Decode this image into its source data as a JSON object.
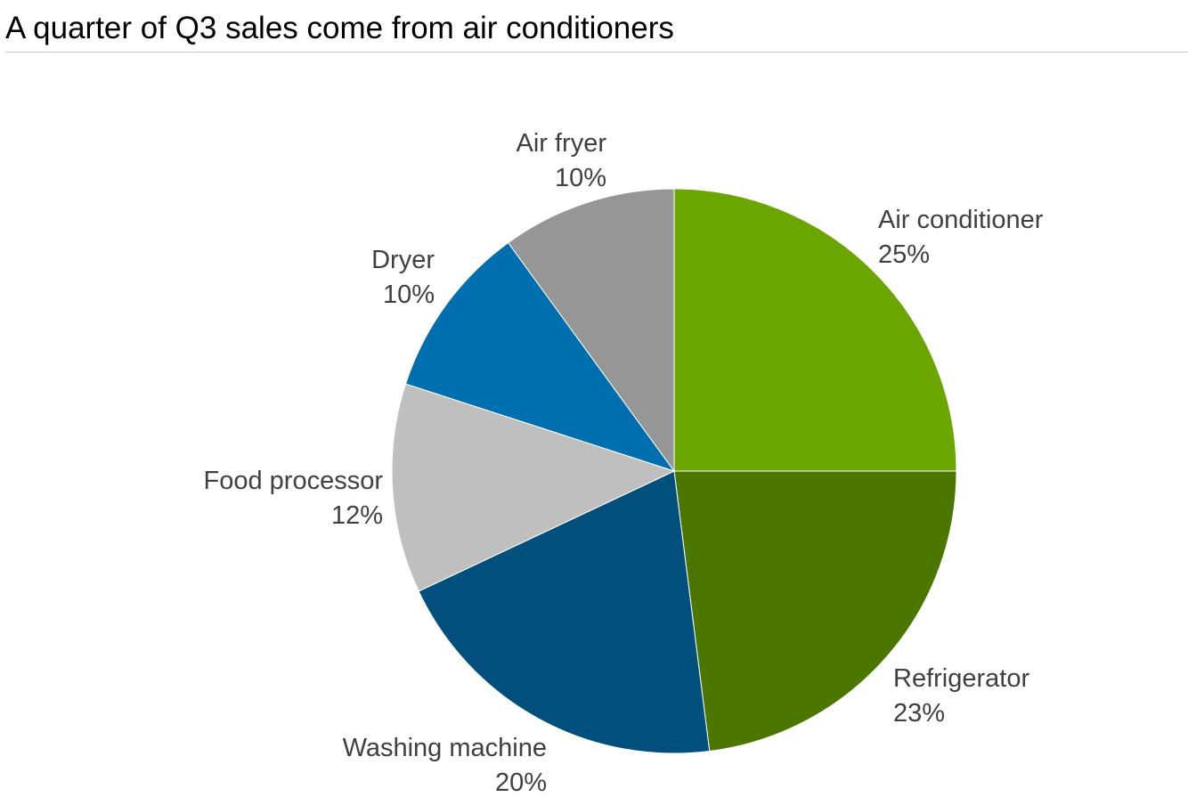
{
  "chart_data": {
    "type": "pie",
    "title": "A quarter of Q3 sales come from air conditioners",
    "slices": [
      {
        "name": "Air conditioner",
        "value": 25,
        "label": "25%",
        "color": "#6AA500"
      },
      {
        "name": "Refrigerator",
        "value": 23,
        "label": "23%",
        "color": "#4B7600"
      },
      {
        "name": "Washing machine",
        "value": 20,
        "label": "20%",
        "color": "#004F7C"
      },
      {
        "name": "Food processor",
        "value": 12,
        "label": "12%",
        "color": "#BFBFBF"
      },
      {
        "name": "Dryer",
        "value": 10,
        "label": "10%",
        "color": "#006FB0"
      },
      {
        "name": "Air fryer",
        "value": 10,
        "label": "10%",
        "color": "#969696"
      }
    ]
  }
}
